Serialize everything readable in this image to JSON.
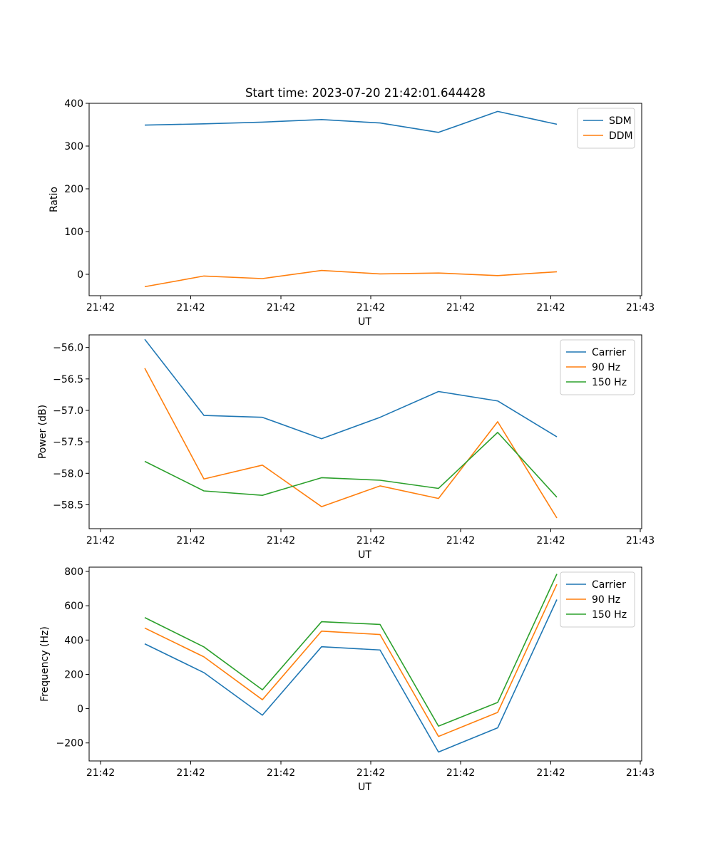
{
  "chart_data": [
    {
      "type": "line",
      "title": "Start time: 2023-07-20 21:42:01.644428",
      "xlabel": "UT",
      "ylabel": "Ratio",
      "x_tick_labels": [
        "21:42",
        "21:42",
        "21:42",
        "21:42",
        "21:42",
        "21:42",
        "21:43"
      ],
      "ylim": [
        -50,
        400
      ],
      "yticks": [
        0,
        100,
        200,
        300,
        400
      ],
      "legend_position": "top-right",
      "series": [
        {
          "name": "SDM",
          "color": "#1f77b4",
          "values": [
            349,
            352,
            356,
            362,
            354,
            332,
            381,
            351
          ]
        },
        {
          "name": "DDM",
          "color": "#ff7f0e",
          "values": [
            -29,
            -4,
            -10,
            9,
            1,
            3,
            -3,
            6
          ]
        }
      ]
    },
    {
      "type": "line",
      "title": "",
      "xlabel": "UT",
      "ylabel": "Power (dB)",
      "x_tick_labels": [
        "21:42",
        "21:42",
        "21:42",
        "21:42",
        "21:42",
        "21:42",
        "21:43"
      ],
      "ylim": [
        -58.88,
        -55.8
      ],
      "yticks": [
        -56.0,
        -56.5,
        -57.0,
        -57.5,
        -58.0,
        -58.5
      ],
      "legend_position": "top-right",
      "series": [
        {
          "name": "Carrier",
          "color": "#1f77b4",
          "values": [
            -55.87,
            -57.08,
            -57.11,
            -57.45,
            -57.11,
            -56.7,
            -56.85,
            -57.42
          ]
        },
        {
          "name": "90 Hz",
          "color": "#ff7f0e",
          "values": [
            -56.33,
            -58.09,
            -57.87,
            -58.53,
            -58.2,
            -58.4,
            -57.18,
            -58.71
          ]
        },
        {
          "name": "150 Hz",
          "color": "#2ca02c",
          "values": [
            -57.81,
            -58.28,
            -58.35,
            -58.07,
            -58.11,
            -58.24,
            -57.35,
            -58.38
          ]
        }
      ]
    },
    {
      "type": "line",
      "title": "",
      "xlabel": "UT",
      "ylabel": "Frequency (Hz)",
      "x_tick_labels": [
        "21:42",
        "21:42",
        "21:42",
        "21:42",
        "21:42",
        "21:42",
        "21:43"
      ],
      "ylim": [
        -305,
        825
      ],
      "yticks": [
        -200,
        0,
        200,
        400,
        600,
        800
      ],
      "legend_position": "top-right",
      "series": [
        {
          "name": "Carrier",
          "color": "#1f77b4",
          "values": [
            378,
            210,
            -38,
            361,
            342,
            -253,
            -112,
            636
          ]
        },
        {
          "name": "90 Hz",
          "color": "#ff7f0e",
          "values": [
            470,
            302,
            52,
            452,
            432,
            -162,
            -22,
            725
          ]
        },
        {
          "name": "150 Hz",
          "color": "#2ca02c",
          "values": [
            531,
            360,
            110,
            507,
            491,
            -102,
            36,
            785
          ]
        }
      ]
    }
  ]
}
